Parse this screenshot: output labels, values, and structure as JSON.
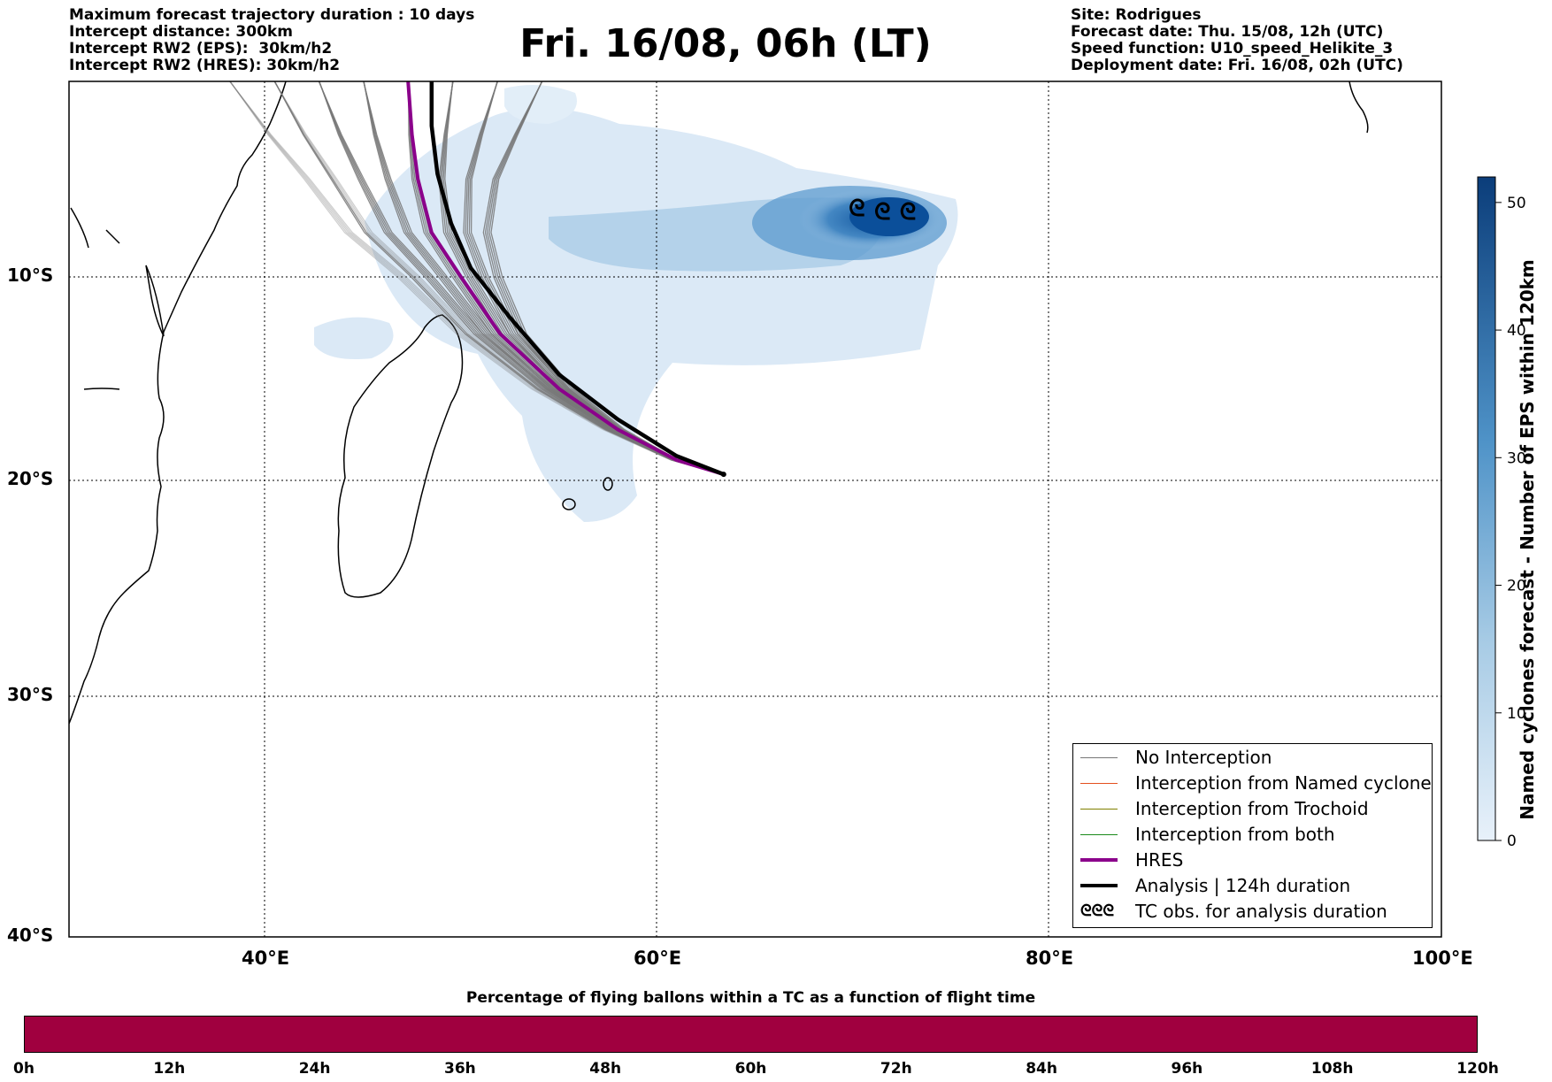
{
  "header": {
    "left_lines": [
      "Maximum forecast trajectory duration : 10 days",
      "Intercept distance: 300km",
      "Intercept RW2 (EPS):  30km/h2",
      "Intercept RW2 (HRES): 30km/h2"
    ],
    "title": "Fri. 16/08, 06h (LT)",
    "right_lines": [
      "Site: Rodrigues",
      "Forecast date: Thu. 15/08, 12h (UTC)",
      "Speed function: U10_speed_Helikite_3",
      "Deployment date: Fri. 16/08, 02h (UTC)"
    ]
  },
  "map": {
    "lat_labels": [
      "10°S",
      "20°S",
      "30°S",
      "40°S"
    ],
    "lon_labels": [
      "40°E",
      "60°E",
      "80°E",
      "100°E"
    ],
    "lat_range": [
      -40,
      1
    ],
    "lon_range": [
      30,
      100
    ],
    "grid": "dotted",
    "launch_site": {
      "name": "Rodrigues",
      "lon": 63.4,
      "lat": -19.7
    }
  },
  "legend": {
    "items": [
      {
        "label": "No Interception",
        "color": "#777777"
      },
      {
        "label": "Interception from Named cyclone",
        "color": "#e4501e"
      },
      {
        "label": "Interception from Trochoid",
        "color": "#808000"
      },
      {
        "label": "Interception from both",
        "color": "#1a8a1a"
      },
      {
        "label": "HRES",
        "color": "#8b008b"
      },
      {
        "label": "Analysis | 124h duration",
        "color": "#000000"
      },
      {
        "label": "TC obs. for analysis duration",
        "icon": "cyclone-icon"
      }
    ]
  },
  "colorbar": {
    "label": "Named cyclones forecast - Number of EPS within 120km",
    "ticks": [
      "0",
      "10",
      "20",
      "30",
      "40",
      "50"
    ],
    "range": [
      0,
      52
    ],
    "colors": [
      "#e8f1fa",
      "#0b3d7a"
    ]
  },
  "timebar": {
    "title": "Percentage of flying ballons within a TC as a function of flight time",
    "ticks": [
      "0h",
      "12h",
      "24h",
      "36h",
      "48h",
      "60h",
      "72h",
      "84h",
      "96h",
      "108h",
      "120h"
    ],
    "fill_color": "#a0003f"
  },
  "chart_data": {
    "type": "line",
    "title": "Fri. 16/08, 06h (LT)",
    "series": [
      {
        "name": "HRES",
        "color": "#8b008b",
        "x": [
          63.4,
          61,
          58,
          55,
          52,
          50,
          48.5,
          47.8,
          47.5,
          47.3
        ],
        "y": [
          -19.7,
          -19.0,
          -17.5,
          -15.5,
          -12.8,
          -10.0,
          -7.5,
          -4.5,
          -2.0,
          1.0
        ]
      },
      {
        "name": "Analysis | 124h duration",
        "color": "#000000",
        "x": [
          63.4,
          61,
          58,
          55,
          52.5,
          50.5,
          49.5,
          48.8,
          48.5,
          48.5
        ],
        "y": [
          -19.7,
          -18.8,
          -17.0,
          -14.8,
          -12.0,
          -9.5,
          -7.0,
          -4.2,
          -1.5,
          1.0
        ]
      }
    ],
    "cyclone_obs": {
      "x": [
        70.2,
        71.5,
        72.8
      ],
      "y": [
        -6.2,
        -6.4,
        -6.4
      ]
    }
  }
}
